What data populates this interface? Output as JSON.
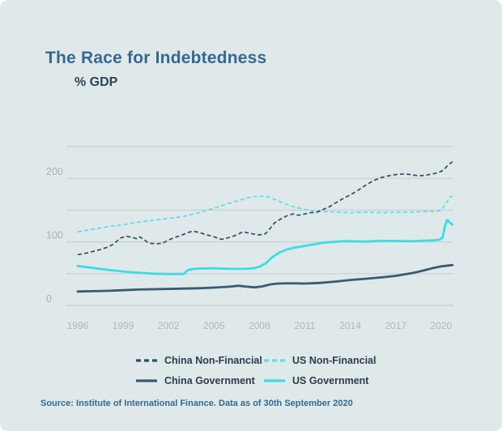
{
  "header": {
    "title": "The Race for Indebtedness",
    "subtitle": "% GDP"
  },
  "footer": {
    "source": "Source: Institute of International Finance. Data as of 30th September 2020"
  },
  "colors": {
    "background": "#dfe9ea",
    "title": "#38688f",
    "subtitle": "#2e4556",
    "grid": "#c8d2d4",
    "y_tick_text": "#a7b3b8",
    "x_tick_text": "#aeb9bd",
    "legend_text": "#2b3d4b",
    "source_text": "#2e6b99"
  },
  "chart_data": {
    "type": "line",
    "title": "The Race for Indebtedness",
    "ylabel": "% GDP",
    "xlabel": "",
    "xlim": [
      1996,
      2020.75
    ],
    "ylim": [
      0,
      255
    ],
    "grid": "horizontal",
    "legend_position": "bottom",
    "x_ticks": [
      1996,
      1999,
      2002,
      2005,
      2008,
      2011,
      2014,
      2017,
      2020
    ],
    "y_ticks": [
      0,
      100,
      200
    ],
    "y_gridlines": [
      0,
      50,
      100,
      150,
      200,
      250
    ],
    "series": [
      {
        "name": "China Non-Financial",
        "style": "dashed",
        "color": "#2f4d66",
        "points": [
          [
            1996,
            80
          ],
          [
            1996.5,
            82
          ],
          [
            1997,
            85
          ],
          [
            1997.5,
            88
          ],
          [
            1998,
            92
          ],
          [
            1998.4,
            97
          ],
          [
            1998.8,
            106
          ],
          [
            1999.2,
            109
          ],
          [
            1999.6,
            107
          ],
          [
            1999.9,
            105
          ],
          [
            2000.1,
            108
          ],
          [
            2000.4,
            103
          ],
          [
            2000.7,
            98
          ],
          [
            2001.2,
            97
          ],
          [
            2001.6,
            98
          ],
          [
            2002,
            103
          ],
          [
            2002.4,
            107
          ],
          [
            2002.8,
            110
          ],
          [
            2003.2,
            114
          ],
          [
            2003.6,
            117
          ],
          [
            2004,
            115
          ],
          [
            2004.4,
            112
          ],
          [
            2005,
            108
          ],
          [
            2005.5,
            104
          ],
          [
            2006,
            107
          ],
          [
            2006.5,
            111
          ],
          [
            2006.9,
            116
          ],
          [
            2007.3,
            114
          ],
          [
            2007.7,
            112
          ],
          [
            2008,
            111
          ],
          [
            2008.4,
            113
          ],
          [
            2008.7,
            121
          ],
          [
            2009,
            130
          ],
          [
            2009.4,
            136
          ],
          [
            2009.8,
            141
          ],
          [
            2010.2,
            144
          ],
          [
            2010.6,
            142
          ],
          [
            2011,
            144
          ],
          [
            2011.4,
            146
          ],
          [
            2011.8,
            147
          ],
          [
            2012.2,
            151
          ],
          [
            2012.6,
            155
          ],
          [
            2013,
            161
          ],
          [
            2013.5,
            168
          ],
          [
            2014,
            174
          ],
          [
            2014.5,
            181
          ],
          [
            2015,
            189
          ],
          [
            2015.5,
            196
          ],
          [
            2016,
            201
          ],
          [
            2016.5,
            204
          ],
          [
            2017,
            206
          ],
          [
            2017.5,
            207
          ],
          [
            2018,
            206
          ],
          [
            2018.5,
            204
          ],
          [
            2019,
            205
          ],
          [
            2019.4,
            207
          ],
          [
            2019.8,
            209
          ],
          [
            2020,
            211
          ],
          [
            2020.2,
            214
          ],
          [
            2020.5,
            222
          ],
          [
            2020.75,
            226
          ]
        ]
      },
      {
        "name": "US Non-Financial",
        "style": "dashed",
        "color": "#5edce9",
        "points": [
          [
            1996,
            116
          ],
          [
            1997,
            120
          ],
          [
            1998,
            124
          ],
          [
            1999,
            127
          ],
          [
            2000,
            131
          ],
          [
            2001,
            134
          ],
          [
            2002,
            137
          ],
          [
            2003,
            140
          ],
          [
            2004,
            146
          ],
          [
            2005,
            153
          ],
          [
            2006,
            161
          ],
          [
            2007,
            168
          ],
          [
            2007.5,
            171
          ],
          [
            2008,
            172
          ],
          [
            2008.6,
            171
          ],
          [
            2009,
            167
          ],
          [
            2009.5,
            162
          ],
          [
            2010,
            157
          ],
          [
            2010.5,
            154
          ],
          [
            2011,
            151
          ],
          [
            2011.5,
            149
          ],
          [
            2012,
            148
          ],
          [
            2013,
            147
          ],
          [
            2014,
            146
          ],
          [
            2015,
            147
          ],
          [
            2016,
            146
          ],
          [
            2017,
            147
          ],
          [
            2018,
            147
          ],
          [
            2019,
            148
          ],
          [
            2019.5,
            148
          ],
          [
            2019.9,
            149
          ],
          [
            2020.1,
            153
          ],
          [
            2020.3,
            160
          ],
          [
            2020.5,
            167
          ],
          [
            2020.65,
            172
          ],
          [
            2020.75,
            171
          ]
        ]
      },
      {
        "name": "China Government",
        "style": "solid",
        "color": "#3a5a73",
        "points": [
          [
            1996,
            22
          ],
          [
            1997,
            22.5
          ],
          [
            1998,
            23
          ],
          [
            1999,
            24
          ],
          [
            2000,
            25
          ],
          [
            2001,
            25.5
          ],
          [
            2002,
            26
          ],
          [
            2003,
            26.5
          ],
          [
            2004,
            27
          ],
          [
            2005,
            28
          ],
          [
            2006,
            29.5
          ],
          [
            2006.6,
            31
          ],
          [
            2007.2,
            29.5
          ],
          [
            2007.7,
            28.5
          ],
          [
            2008.2,
            30
          ],
          [
            2008.7,
            33
          ],
          [
            2009.2,
            34.5
          ],
          [
            2010,
            35
          ],
          [
            2011,
            34.5
          ],
          [
            2012,
            35.5
          ],
          [
            2013,
            37.5
          ],
          [
            2014,
            40
          ],
          [
            2015,
            42
          ],
          [
            2016,
            44
          ],
          [
            2017,
            46.5
          ],
          [
            2017.6,
            49
          ],
          [
            2018,
            50.5
          ],
          [
            2018.5,
            53
          ],
          [
            2019,
            56
          ],
          [
            2019.5,
            59
          ],
          [
            2020,
            61.5
          ],
          [
            2020.75,
            63.5
          ]
        ]
      },
      {
        "name": "US Government",
        "style": "solid",
        "color": "#3cdce6",
        "points": [
          [
            1996,
            62
          ],
          [
            1997,
            59
          ],
          [
            1998,
            56
          ],
          [
            1999,
            53.5
          ],
          [
            2000,
            51.5
          ],
          [
            2001,
            50
          ],
          [
            2002,
            49.5
          ],
          [
            2003,
            49.5
          ],
          [
            2003.3,
            56
          ],
          [
            2003.7,
            57.5
          ],
          [
            2004,
            58
          ],
          [
            2005,
            58.5
          ],
          [
            2006,
            57.5
          ],
          [
            2007,
            57.5
          ],
          [
            2007.6,
            58.5
          ],
          [
            2008,
            61
          ],
          [
            2008.4,
            66
          ],
          [
            2008.8,
            75
          ],
          [
            2009.3,
            83
          ],
          [
            2009.8,
            88
          ],
          [
            2010.3,
            91
          ],
          [
            2010.8,
            93
          ],
          [
            2011.3,
            95
          ],
          [
            2011.8,
            97
          ],
          [
            2012.3,
            99
          ],
          [
            2012.8,
            100
          ],
          [
            2013.5,
            101
          ],
          [
            2014,
            101
          ],
          [
            2015,
            100.5
          ],
          [
            2016,
            101.5
          ],
          [
            2017,
            101.5
          ],
          [
            2018,
            101
          ],
          [
            2019,
            102
          ],
          [
            2019.5,
            102.5
          ],
          [
            2019.9,
            103.5
          ],
          [
            2020.1,
            107
          ],
          [
            2020.25,
            125
          ],
          [
            2020.4,
            135
          ],
          [
            2020.55,
            131
          ],
          [
            2020.75,
            127
          ]
        ]
      }
    ]
  }
}
